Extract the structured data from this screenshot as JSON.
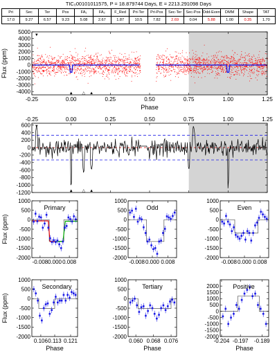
{
  "title": "TIC₀00101011575, P = 18.879744 Days, E = 2213.291098 Days",
  "stats": {
    "headers": [
      "Pri",
      "Sec",
      "Ter",
      "Pos",
      "FA₁",
      "FA₂",
      "F_Red",
      "Pri-Ter",
      "Pri-Pos",
      "Sec-Ter",
      "Sec-Pos",
      "Odd-Even",
      "DMM",
      "Shape",
      "TAT"
    ],
    "values": [
      "17.0",
      "9.27",
      "6.57",
      "9.23",
      "5.08",
      "2.67",
      "1.87",
      "10.5",
      "7.82",
      "2.69",
      "0.04",
      "5.88",
      "1.00",
      "0.35",
      "1.70"
    ],
    "highlight_color": "#e00000",
    "highlighted": [
      "Sec-Ter",
      "Odd-Even",
      "Shape"
    ]
  },
  "colors": {
    "raw_points": "#ff0000",
    "binned": "#1a1ae6",
    "model": "#1a1ae6",
    "shade": "#d4d4d4",
    "zero_line": "#e00000",
    "limit_line": "#1a1ae6",
    "fit_red": "#e00000",
    "fit_green": "#00aa00"
  },
  "chart_data": [
    {
      "id": "full-phase",
      "type": "scatter",
      "xlabel": "Phase",
      "ylabel": "Flux (ppm)",
      "xlim": [
        -0.25,
        1.25
      ],
      "ylim": [
        -4500,
        5000
      ],
      "xticks": [
        "-0.25",
        "0.00",
        "0.25",
        "0.50",
        "0.75",
        "1.00",
        "1.25"
      ],
      "yticks": [
        "5000",
        "4000",
        "3000",
        "2000",
        "1000",
        "0",
        "-1000",
        "-2000",
        "-3000",
        "-4000"
      ],
      "shaded_range": [
        0.75,
        1.25
      ],
      "data_gap": [
        0.44,
        0.54
      ],
      "point_spread_ppm": 1600,
      "markers": [
        {
          "x": -0.22,
          "symbol": "▼",
          "position": "top"
        },
        {
          "x": 0.0,
          "symbol": "▲",
          "position": "bottom"
        },
        {
          "x": 0.08,
          "symbol": "△",
          "position": "bottom"
        },
        {
          "x": 0.13,
          "symbol": "▲",
          "position": "bottom"
        }
      ],
      "dips": [
        {
          "x": 0.0,
          "depth": -1100
        },
        {
          "x": 1.0,
          "depth": -1100
        }
      ]
    },
    {
      "id": "binned-phase",
      "type": "line",
      "xlabel": "",
      "ylabel": "",
      "xlim": [
        -0.25,
        1.25
      ],
      "ylim": [
        -1200,
        650
      ],
      "xticks": [
        "-0.25",
        "0.00",
        "0.25",
        "0.50",
        "0.75",
        "1.00",
        "1.25"
      ],
      "yticks": [
        "600",
        "400",
        "200",
        "0",
        "-200",
        "-400",
        "-600",
        "-800",
        "-1000",
        "-1200"
      ],
      "shaded_range": [
        0.75,
        1.25
      ],
      "limit_lines": [
        330,
        -330
      ],
      "markers": [
        {
          "x": -0.22,
          "symbol": "▼",
          "position": "top"
        },
        {
          "x": 0.0,
          "symbol": "▲",
          "position": "bottom"
        },
        {
          "x": 0.08,
          "symbol": "△",
          "position": "bottom"
        },
        {
          "x": 0.13,
          "symbol": "▲",
          "position": "bottom"
        }
      ],
      "features": [
        {
          "x": -0.22,
          "y": 600
        },
        {
          "x": 0.0,
          "y": -1130
        },
        {
          "x": 0.08,
          "y": -700
        },
        {
          "x": 0.13,
          "y": -620
        },
        {
          "x": 0.75,
          "y": -600
        },
        {
          "x": 0.78,
          "y": 600
        },
        {
          "x": 1.0,
          "y": -1130
        }
      ]
    },
    {
      "id": "primary",
      "type": "scatter",
      "title": "Primary",
      "xlabel": "",
      "ylabel": "Flux (ppm)",
      "xlim": [
        -0.0125,
        0.0125
      ],
      "ylim": [
        -2000,
        1000
      ],
      "xticks": [
        "-0.008",
        "0.000",
        "0.008"
      ],
      "yticks": [
        "1000",
        "500",
        "0",
        "-500",
        "-1000",
        "-1500",
        "-2000"
      ],
      "x": [
        -0.0115,
        -0.0105,
        -0.0095,
        -0.0085,
        -0.0075,
        -0.0065,
        -0.0055,
        -0.0045,
        -0.0035,
        -0.0025,
        -0.0015,
        -0.0005,
        0.0005,
        0.0015,
        0.0025,
        0.0035,
        0.0045,
        0.0055,
        0.0065,
        0.0075,
        0.0085,
        0.0095,
        0.0105,
        0.0115
      ],
      "y": [
        -100,
        320,
        -80,
        160,
        120,
        -420,
        -200,
        260,
        -420,
        -980,
        -1180,
        -1080,
        -1180,
        -1100,
        -1300,
        -1500,
        -1150,
        -420,
        -330,
        120,
        30,
        -90,
        180,
        20
      ]
    },
    {
      "id": "odd",
      "type": "scatter",
      "title": "Odd",
      "xlabel": "",
      "ylabel": "",
      "xlim": [
        -0.0125,
        0.0125
      ],
      "ylim": [
        -2000,
        1000
      ],
      "xticks": [
        "-0.008",
        "0.000",
        "0.008"
      ],
      "yticks": [
        "1000",
        "500",
        "0",
        "-500",
        "-1000",
        "-1500",
        "-2000"
      ],
      "x": [
        -0.0115,
        -0.0105,
        -0.0095,
        -0.0085,
        -0.0075,
        -0.0065,
        -0.0055,
        -0.0045,
        -0.0035,
        -0.0025,
        -0.0015,
        -0.0005,
        0.0005,
        0.0015,
        0.0025,
        0.0035,
        0.0045,
        0.0055,
        0.0065,
        0.0075,
        0.0085,
        0.0095,
        0.0105,
        0.0115
      ],
      "y": [
        380,
        480,
        150,
        580,
        -100,
        80,
        20,
        -400,
        -700,
        -1150,
        -1050,
        -1350,
        -1550,
        -1500,
        -1800,
        -1150,
        -1100,
        -700,
        -480,
        180,
        120,
        50,
        200,
        380
      ]
    },
    {
      "id": "even",
      "type": "scatter",
      "title": "Even",
      "xlabel": "",
      "ylabel": "",
      "xlim": [
        -0.0125,
        0.0125
      ],
      "ylim": [
        -2000,
        1000
      ],
      "xticks": [
        "-0.008",
        "0.000",
        "0.008"
      ],
      "yticks": [
        "1000",
        "500",
        "0",
        "-500",
        "-1000",
        "-1500",
        "-2000"
      ],
      "x": [
        -0.0115,
        -0.0105,
        -0.0095,
        -0.0085,
        -0.0075,
        -0.0065,
        -0.0055,
        -0.0045,
        -0.0035,
        -0.0025,
        -0.0015,
        -0.0005,
        0.0005,
        0.0015,
        0.0025,
        0.0035,
        0.0045,
        0.0055,
        0.0065,
        0.0075,
        0.0085,
        0.0095,
        0.0105,
        0.0115
      ],
      "y": [
        -100,
        -200,
        200,
        -100,
        -250,
        -600,
        -400,
        -800,
        -900,
        -1000,
        -850,
        -700,
        -1050,
        -600,
        -700,
        -1100,
        -700,
        -300,
        -150,
        100,
        420,
        280,
        150,
        50
      ]
    },
    {
      "id": "secondary",
      "type": "scatter",
      "title": "Secondary",
      "xlabel": "Phase",
      "ylabel": "Flux (ppm)",
      "xlim": [
        0.1015,
        0.1245
      ],
      "ylim": [
        -2000,
        1000
      ],
      "xticks": [
        "0.106",
        "0.113",
        "0.121"
      ],
      "yticks": [
        "1000",
        "500",
        "0",
        "-500",
        "-1000",
        "-1500",
        "-2000"
      ],
      "x": [
        0.1025,
        0.1035,
        0.1045,
        0.1055,
        0.1065,
        0.1075,
        0.1085,
        0.1095,
        0.1105,
        0.1115,
        0.1125,
        0.1135,
        0.1145,
        0.1155,
        0.1165,
        0.1175,
        0.1185,
        0.1195,
        0.1205,
        0.1215,
        0.1225,
        0.1235
      ],
      "y": [
        500,
        280,
        -100,
        -900,
        -1150,
        -500,
        -300,
        -250,
        -800,
        -600,
        -200,
        100,
        -200,
        -100,
        -100,
        200,
        -100,
        200,
        50,
        350,
        280,
        200
      ]
    },
    {
      "id": "tertiary",
      "type": "scatter",
      "title": "Tertiary",
      "xlabel": "Phase",
      "ylabel": "",
      "xlim": [
        0.0565,
        0.0785
      ],
      "ylim": [
        -2000,
        1000
      ],
      "xticks": [
        "0.060",
        "0.068",
        "0.076"
      ],
      "yticks": [
        "1000",
        "500",
        "0",
        "-500",
        "-1000",
        "-1500",
        "-2000"
      ],
      "x": [
        0.0575,
        0.0585,
        0.0595,
        0.0605,
        0.0615,
        0.0625,
        0.0635,
        0.0645,
        0.0655,
        0.0665,
        0.0675,
        0.0685,
        0.0695,
        0.0705,
        0.0715,
        0.0725,
        0.0735,
        0.0745,
        0.0755,
        0.0765,
        0.0775
      ],
      "y": [
        -200,
        -100,
        0,
        -350,
        -700,
        -450,
        -400,
        -900,
        -650,
        -350,
        -500,
        -800,
        -1050,
        -850,
        -500,
        -350,
        -600,
        -400,
        -150,
        -50,
        -200
      ]
    },
    {
      "id": "positive",
      "type": "scatter",
      "title": "Positive",
      "xlabel": "Phase",
      "ylabel": "",
      "xlim": [
        -0.2045,
        -0.1865
      ],
      "ylim": [
        -2000,
        2500
      ],
      "xticks": [
        "-0.204",
        "-0.197",
        "-0.189"
      ],
      "yticks": [
        "2000",
        "1500",
        "1000",
        "500",
        "0",
        "-500",
        "-1000",
        "-1500",
        "-2000"
      ],
      "x": [
        -0.2035,
        -0.2025,
        -0.2015,
        -0.2005,
        -0.1995,
        -0.1985,
        -0.1975,
        -0.1965,
        -0.1955,
        -0.1945,
        -0.1935,
        -0.1925,
        -0.1915,
        -0.1905,
        -0.1895,
        -0.1885,
        -0.1875
      ],
      "y": [
        -400,
        200,
        -1000,
        -500,
        -200,
        500,
        200,
        900,
        1400,
        1700,
        1900,
        1200,
        1400,
        500,
        200,
        -200,
        -1000
      ]
    }
  ]
}
